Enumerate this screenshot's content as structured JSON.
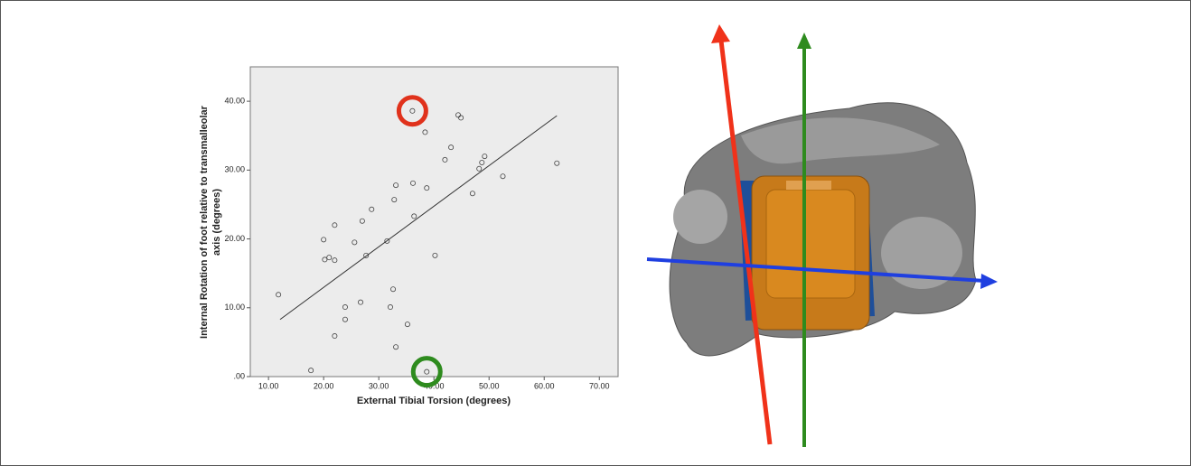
{
  "chart_data": {
    "type": "scatter",
    "xlabel": "External Tibial Torsion (degrees)",
    "ylabel": [
      "Internal Rotation of foot relative to transmalleolar",
      "axis (degrees)"
    ],
    "x": [
      11.8,
      17.7,
      20.0,
      20.2,
      21.0,
      22.0,
      22.0,
      22.0,
      23.9,
      23.9,
      25.6,
      26.7,
      27.0,
      27.7,
      28.7,
      31.5,
      32.1,
      32.6,
      32.8,
      33.1,
      33.1,
      35.2,
      36.1,
      36.2,
      36.4,
      38.4,
      38.7,
      38.7,
      40.2,
      42.0,
      43.1,
      44.4,
      44.9,
      47.0,
      48.2,
      48.7,
      49.2,
      52.5,
      62.3
    ],
    "values": [
      11.9,
      0.9,
      19.9,
      17.0,
      17.3,
      16.9,
      22.0,
      5.9,
      10.1,
      8.3,
      19.5,
      10.8,
      22.6,
      17.6,
      24.3,
      19.7,
      10.1,
      12.7,
      25.7,
      27.8,
      4.3,
      7.6,
      38.6,
      28.1,
      23.3,
      35.5,
      27.4,
      0.7,
      17.6,
      31.5,
      33.3,
      38.0,
      37.6,
      26.6,
      30.2,
      31.1,
      32.0,
      29.1,
      31.0
    ],
    "trend_x": [
      12.1,
      62.3
    ],
    "trend_values": [
      8.3,
      37.9
    ],
    "highlights": [
      {
        "index": 22,
        "color": "#e0321c"
      },
      {
        "index": 27,
        "color": "#2e8b1e"
      }
    ],
    "xlim": [
      6.7,
      73.4
    ],
    "ylim": [
      0,
      45
    ],
    "xticks": [
      {
        "value": 10,
        "label": "10.00"
      },
      {
        "value": 20,
        "label": "20.00"
      },
      {
        "value": 30,
        "label": "30.00"
      },
      {
        "value": 40,
        "label": "40.00"
      },
      {
        "value": 50,
        "label": "50.00"
      },
      {
        "value": 60,
        "label": "60.00"
      },
      {
        "value": 70,
        "label": "70.00"
      }
    ],
    "yticks": [
      {
        "value": 0,
        "label": ".00"
      },
      {
        "value": 10,
        "label": "10.00"
      },
      {
        "value": 20,
        "label": "20.00"
      },
      {
        "value": 30,
        "label": "30.00"
      },
      {
        "value": 40,
        "label": "40.00"
      }
    ]
  }
}
